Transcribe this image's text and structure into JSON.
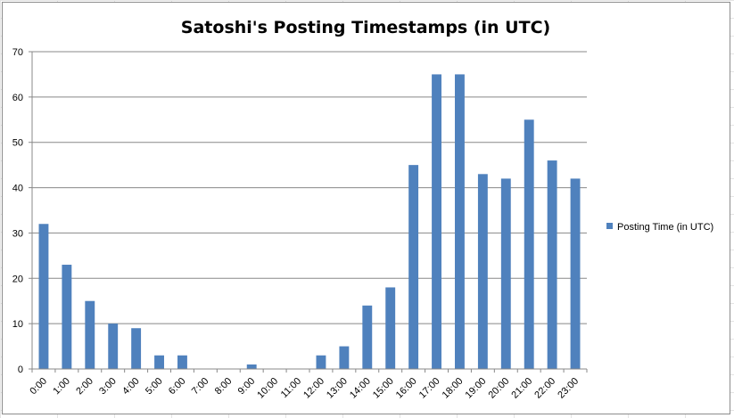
{
  "chart_data": {
    "type": "bar",
    "title": "Satoshi's Posting Timestamps (in UTC)",
    "xlabel": "",
    "ylabel": "",
    "categories": [
      "0:00",
      "1:00",
      "2:00",
      "3:00",
      "4:00",
      "5:00",
      "6:00",
      "7:00",
      "8:00",
      "9:00",
      "10:00",
      "11:00",
      "12:00",
      "13:00",
      "14:00",
      "15:00",
      "16:00",
      "17:00",
      "18:00",
      "19:00",
      "20:00",
      "21:00",
      "22:00",
      "23:00"
    ],
    "series": [
      {
        "name": "Posting Time (in UTC)",
        "color": "#4f81bd",
        "values": [
          32,
          23,
          15,
          10,
          9,
          3,
          3,
          0,
          0,
          1,
          0,
          0,
          3,
          5,
          14,
          18,
          45,
          65,
          65,
          43,
          42,
          55,
          46,
          42
        ]
      }
    ],
    "ylim": [
      0,
      70
    ],
    "yticks": [
      0,
      10,
      20,
      30,
      40,
      50,
      60,
      70
    ],
    "grid": true,
    "legend_position": "right"
  }
}
